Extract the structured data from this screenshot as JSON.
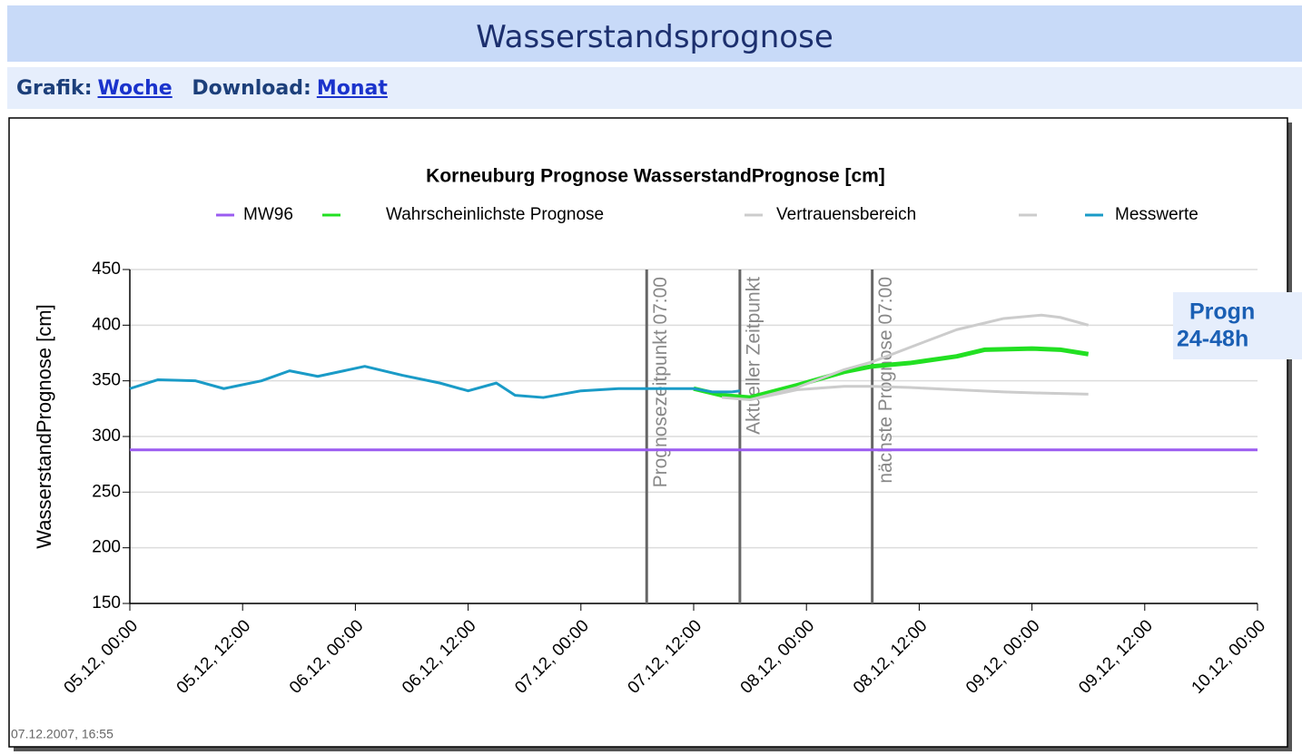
{
  "header": {
    "title": "Wasserstandsprognose"
  },
  "nav": {
    "items": [
      {
        "label": "Grafik:",
        "link": "Woche"
      },
      {
        "label": "Download:",
        "link": "Monat"
      }
    ]
  },
  "footer": "07.12.2007, 16:55",
  "chart_data": {
    "type": "line",
    "title": "Korneuburg Prognose WasserstandPrognose [cm]",
    "y_label": "WasserstandPrognose [cm]",
    "ylim": [
      150,
      450
    ],
    "yticks": [
      150,
      200,
      250,
      300,
      350,
      400,
      450
    ],
    "xlim": [
      "2007-12-05T00:00",
      "2007-12-10T00:00"
    ],
    "xticks": [
      {
        "value": "2007-12-05T00:00",
        "label": "05.12, 00:00"
      },
      {
        "value": "2007-12-05T12:00",
        "label": "05.12, 12:00"
      },
      {
        "value": "2007-12-06T00:00",
        "label": "06.12, 00:00"
      },
      {
        "value": "2007-12-06T12:00",
        "label": "06.12, 12:00"
      },
      {
        "value": "2007-12-07T00:00",
        "label": "07.12, 00:00"
      },
      {
        "value": "2007-12-07T12:00",
        "label": "07.12, 12:00"
      },
      {
        "value": "2007-12-08T00:00",
        "label": "08.12, 00:00"
      },
      {
        "value": "2007-12-08T12:00",
        "label": "08.12, 12:00"
      },
      {
        "value": "2007-12-09T00:00",
        "label": "09.12, 00:00"
      },
      {
        "value": "2007-12-09T12:00",
        "label": "09.12, 12:00"
      },
      {
        "value": "2007-12-10T00:00",
        "label": "10.12, 00:00"
      }
    ],
    "grid": true,
    "series": [
      {
        "name": "MW96",
        "color": "#9b5cf0",
        "x": [
          "2007-12-05T00:00",
          "2007-12-10T00:00"
        ],
        "values": [
          288,
          288
        ]
      },
      {
        "name": "Wahrscheinlichste Prognose",
        "color": "#22e022",
        "x": [
          "2007-12-07T12:00",
          "2007-12-07T15:00",
          "2007-12-07T18:00",
          "2007-12-07T23:00",
          "2007-12-08T04:00",
          "2007-12-08T07:00",
          "2007-12-08T11:00",
          "2007-12-08T16:00",
          "2007-12-08T19:00",
          "2007-12-09T00:00",
          "2007-12-09T03:00",
          "2007-12-09T06:00"
        ],
        "values": [
          343,
          337,
          335,
          346,
          358,
          363,
          366,
          372,
          378,
          379,
          378,
          374
        ]
      },
      {
        "name": "Vertrauensbereich",
        "color": "#cccccc",
        "x": [
          "2007-12-07T15:00",
          "2007-12-07T18:00",
          "2007-12-07T23:00",
          "2007-12-08T04:00",
          "2007-12-08T07:00",
          "2007-12-08T11:00",
          "2007-12-08T16:00",
          "2007-12-08T21:00",
          "2007-12-09T01:00",
          "2007-12-09T03:00",
          "2007-12-09T06:00"
        ],
        "values": [
          335,
          333,
          344,
          360,
          367,
          380,
          396,
          406,
          409,
          407,
          400
        ]
      },
      {
        "color": "#cccccc",
        "x": [
          "2007-12-07T18:00",
          "2007-12-07T23:00",
          "2007-12-08T04:00",
          "2007-12-08T07:00",
          "2007-12-08T11:00",
          "2007-12-08T16:00",
          "2007-12-08T21:00",
          "2007-12-09T01:00",
          "2007-12-09T06:00"
        ],
        "values": [
          333,
          342,
          345,
          345,
          344,
          342,
          340,
          339,
          338
        ]
      },
      {
        "name": "Messwerte",
        "color": "#1a9bc7",
        "x": [
          "2007-12-05T00:00",
          "2007-12-05T03:00",
          "2007-12-05T07:00",
          "2007-12-05T10:00",
          "2007-12-05T14:00",
          "2007-12-05T17:00",
          "2007-12-05T20:00",
          "2007-12-06T01:00",
          "2007-12-06T05:00",
          "2007-12-06T09:00",
          "2007-12-06T12:00",
          "2007-12-06T15:00",
          "2007-12-06T17:00",
          "2007-12-06T20:00",
          "2007-12-07T00:00",
          "2007-12-07T04:00",
          "2007-12-07T08:00",
          "2007-12-07T12:00",
          "2007-12-07T14:00",
          "2007-12-07T16:00",
          "2007-12-07T16:55"
        ],
        "values": [
          343,
          351,
          350,
          343,
          350,
          359,
          354,
          363,
          355,
          348,
          341,
          348,
          337,
          335,
          341,
          343,
          343,
          343,
          340,
          340,
          341
        ]
      }
    ],
    "markers": [
      {
        "label": "Prognosezeitpunkt 07:00",
        "x": "2007-12-07T07:00"
      },
      {
        "label": "Aktueller Zeitpunkt",
        "x": "2007-12-07T16:55"
      },
      {
        "label": "nächste Prognose 07:00",
        "x": "2007-12-08T07:00"
      }
    ],
    "annotation": [
      "Progn",
      "24-48h"
    ]
  }
}
